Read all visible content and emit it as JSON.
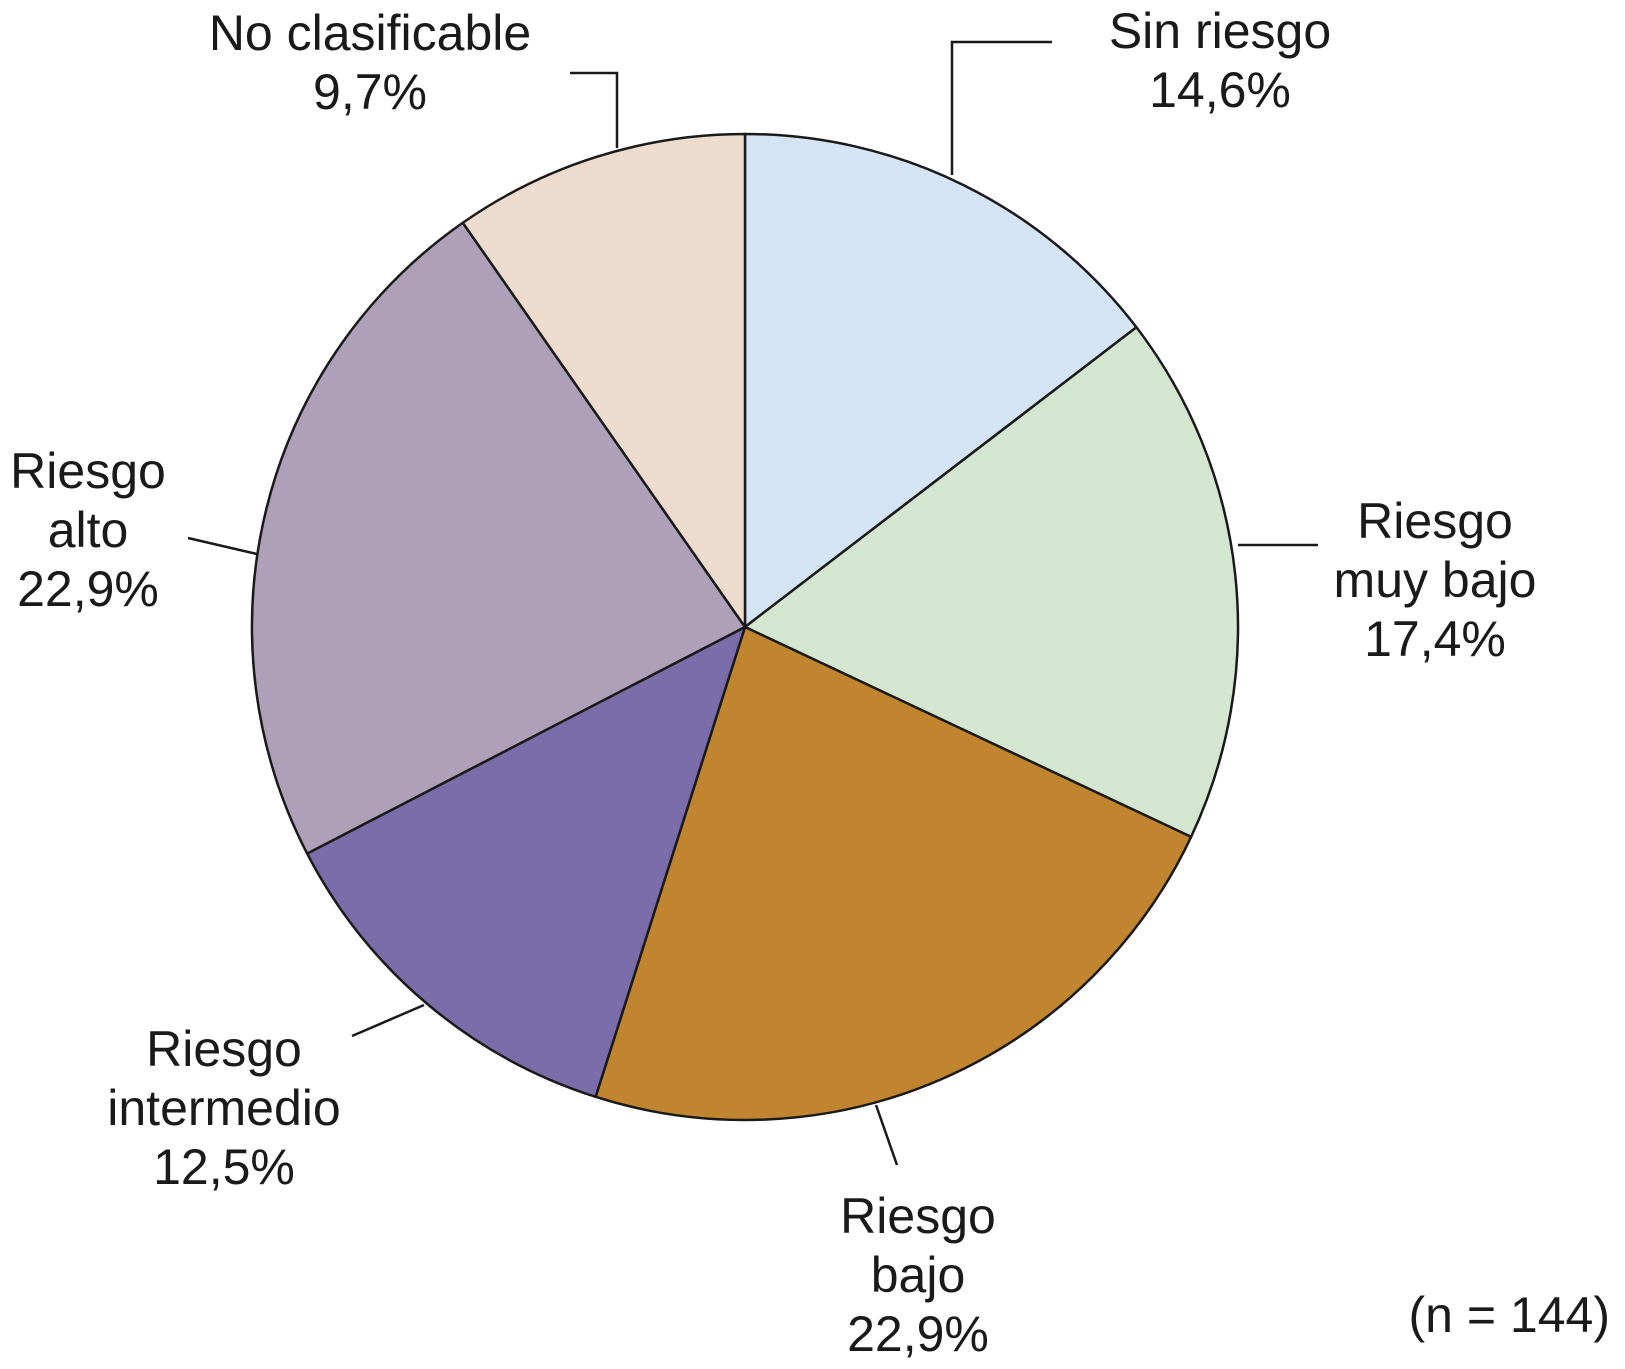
{
  "chart_data": {
    "type": "pie",
    "title": "",
    "start_angle_deg": 0,
    "direction": "clockwise",
    "slices": [
      {
        "label": [
          "Sin riesgo"
        ],
        "value": 14.6,
        "value_label": "14,6%",
        "color": "#d4e4f5"
      },
      {
        "label": [
          "Riesgo",
          "muy bajo"
        ],
        "value": 17.4,
        "value_label": "17,4%",
        "color": "#d4e5d0"
      },
      {
        "label": [
          "Riesgo",
          "bajo"
        ],
        "value": 22.9,
        "value_label": "22,9%",
        "color": "#c0852e"
      },
      {
        "label": [
          "Riesgo",
          "intermedio"
        ],
        "value": 12.5,
        "value_label": "12,5%",
        "color": "#7b6caa"
      },
      {
        "label": [
          "Riesgo",
          "alto"
        ],
        "value": 22.9,
        "value_label": "22,9%",
        "color": "#ada0b8"
      },
      {
        "label": [
          "No clasificable"
        ],
        "value": 9.7,
        "value_label": "9,7%",
        "color": "#eddccd"
      }
    ],
    "annotation": "(n = 144)"
  }
}
